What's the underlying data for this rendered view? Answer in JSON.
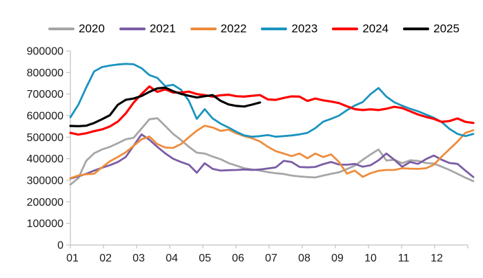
{
  "chart_data": {
    "type": "line",
    "title": "",
    "background": "#ffffff",
    "axis_color": "#c0c0c0",
    "text_color": "#1a1a1a",
    "grid": "off",
    "legend": {
      "position": "top"
    },
    "x_axis": {
      "label": "",
      "unit": "month-of-year",
      "tick_labels": [
        "01",
        "02",
        "03",
        "04",
        "05",
        "06",
        "07",
        "08",
        "09",
        "10",
        "11",
        "12"
      ],
      "points_per_series": 52
    },
    "y_axis": {
      "label": "",
      "min": 0,
      "max": 900000,
      "step": 100000,
      "tick_labels": [
        "0",
        "100000",
        "200000",
        "300000",
        "400000",
        "500000",
        "600000",
        "700000",
        "800000",
        "900000"
      ]
    },
    "series": [
      {
        "name": "2020",
        "color": "#a6a6a6",
        "stroke_width": 2.8,
        "values": [
          280000,
          310000,
          390000,
          425000,
          443000,
          455000,
          472000,
          490000,
          497000,
          540000,
          583000,
          588000,
          552000,
          515000,
          487000,
          455000,
          428000,
          424000,
          410000,
          398000,
          380000,
          368000,
          356000,
          350000,
          345000,
          338000,
          333000,
          329000,
          322000,
          318000,
          315000,
          313000,
          322000,
          330000,
          337000,
          352000,
          368000,
          395000,
          420000,
          443000,
          392000,
          395000,
          379000,
          393000,
          390000,
          380000,
          378000,
          363000,
          348000,
          330000,
          312000,
          296000
        ]
      },
      {
        "name": "2021",
        "color": "#7b5ca6",
        "stroke_width": 2.8,
        "values": [
          308000,
          318000,
          330000,
          345000,
          358000,
          370000,
          385000,
          408000,
          460000,
          513000,
          488000,
          455000,
          425000,
          400000,
          385000,
          372000,
          335000,
          379000,
          353000,
          345000,
          347000,
          348000,
          350000,
          348000,
          350000,
          355000,
          360000,
          390000,
          385000,
          362000,
          360000,
          362000,
          375000,
          385000,
          373000,
          372000,
          376000,
          363000,
          370000,
          393000,
          424000,
          395000,
          363000,
          385000,
          376000,
          398000,
          415000,
          395000,
          380000,
          376000,
          345000,
          315000
        ]
      },
      {
        "name": "2022",
        "color": "#ee8c3c",
        "stroke_width": 2.8,
        "values": [
          310000,
          322000,
          328000,
          330000,
          360000,
          388000,
          408000,
          430000,
          460000,
          490000,
          503000,
          468000,
          452000,
          450000,
          468000,
          500000,
          530000,
          553000,
          545000,
          529000,
          535000,
          518000,
          505000,
          495000,
          480000,
          455000,
          435000,
          424000,
          412000,
          424000,
          402000,
          424000,
          408000,
          420000,
          385000,
          331000,
          345000,
          316000,
          333000,
          344000,
          348000,
          348000,
          356000,
          354000,
          353000,
          356000,
          372000,
          410000,
          445000,
          480000,
          520000,
          532000
        ]
      },
      {
        "name": "2023",
        "color": "#1a93be",
        "stroke_width": 2.8,
        "values": [
          592000,
          650000,
          730000,
          805000,
          825000,
          832000,
          837000,
          840000,
          838000,
          820000,
          788000,
          775000,
          737000,
          743000,
          720000,
          668000,
          585000,
          630000,
          587000,
          563000,
          545000,
          525000,
          508000,
          502000,
          505000,
          510000,
          502000,
          505000,
          508000,
          513000,
          520000,
          542000,
          572000,
          585000,
          600000,
          625000,
          647000,
          663000,
          700000,
          728000,
          688000,
          662000,
          646000,
          632000,
          620000,
          605000,
          590000,
          570000,
          538000,
          515000,
          505000,
          515000
        ]
      },
      {
        "name": "2024",
        "color": "#fe0000",
        "stroke_width": 3.2,
        "values": [
          520000,
          512000,
          518000,
          528000,
          536000,
          550000,
          572000,
          610000,
          660000,
          700000,
          735000,
          710000,
          722000,
          707000,
          707000,
          711000,
          700000,
          695000,
          688000,
          694000,
          697000,
          690000,
          688000,
          692000,
          695000,
          675000,
          673000,
          682000,
          689000,
          688000,
          668000,
          679000,
          671000,
          665000,
          658000,
          643000,
          630000,
          626000,
          629000,
          626000,
          632000,
          641000,
          635000,
          620000,
          605000,
          594000,
          585000,
          571000,
          575000,
          587000,
          571000,
          566000
        ]
      },
      {
        "name": "2025",
        "color": "#000000",
        "stroke_width": 3.2,
        "values": [
          552000,
          551000,
          553000,
          566000,
          583000,
          602000,
          650000,
          673000,
          679000,
          691000,
          710000,
          726000,
          730000,
          713000,
          701000,
          692000,
          684000,
          690000,
          695000,
          669000,
          652000,
          645000,
          642000,
          651000,
          661000
        ]
      }
    ]
  }
}
